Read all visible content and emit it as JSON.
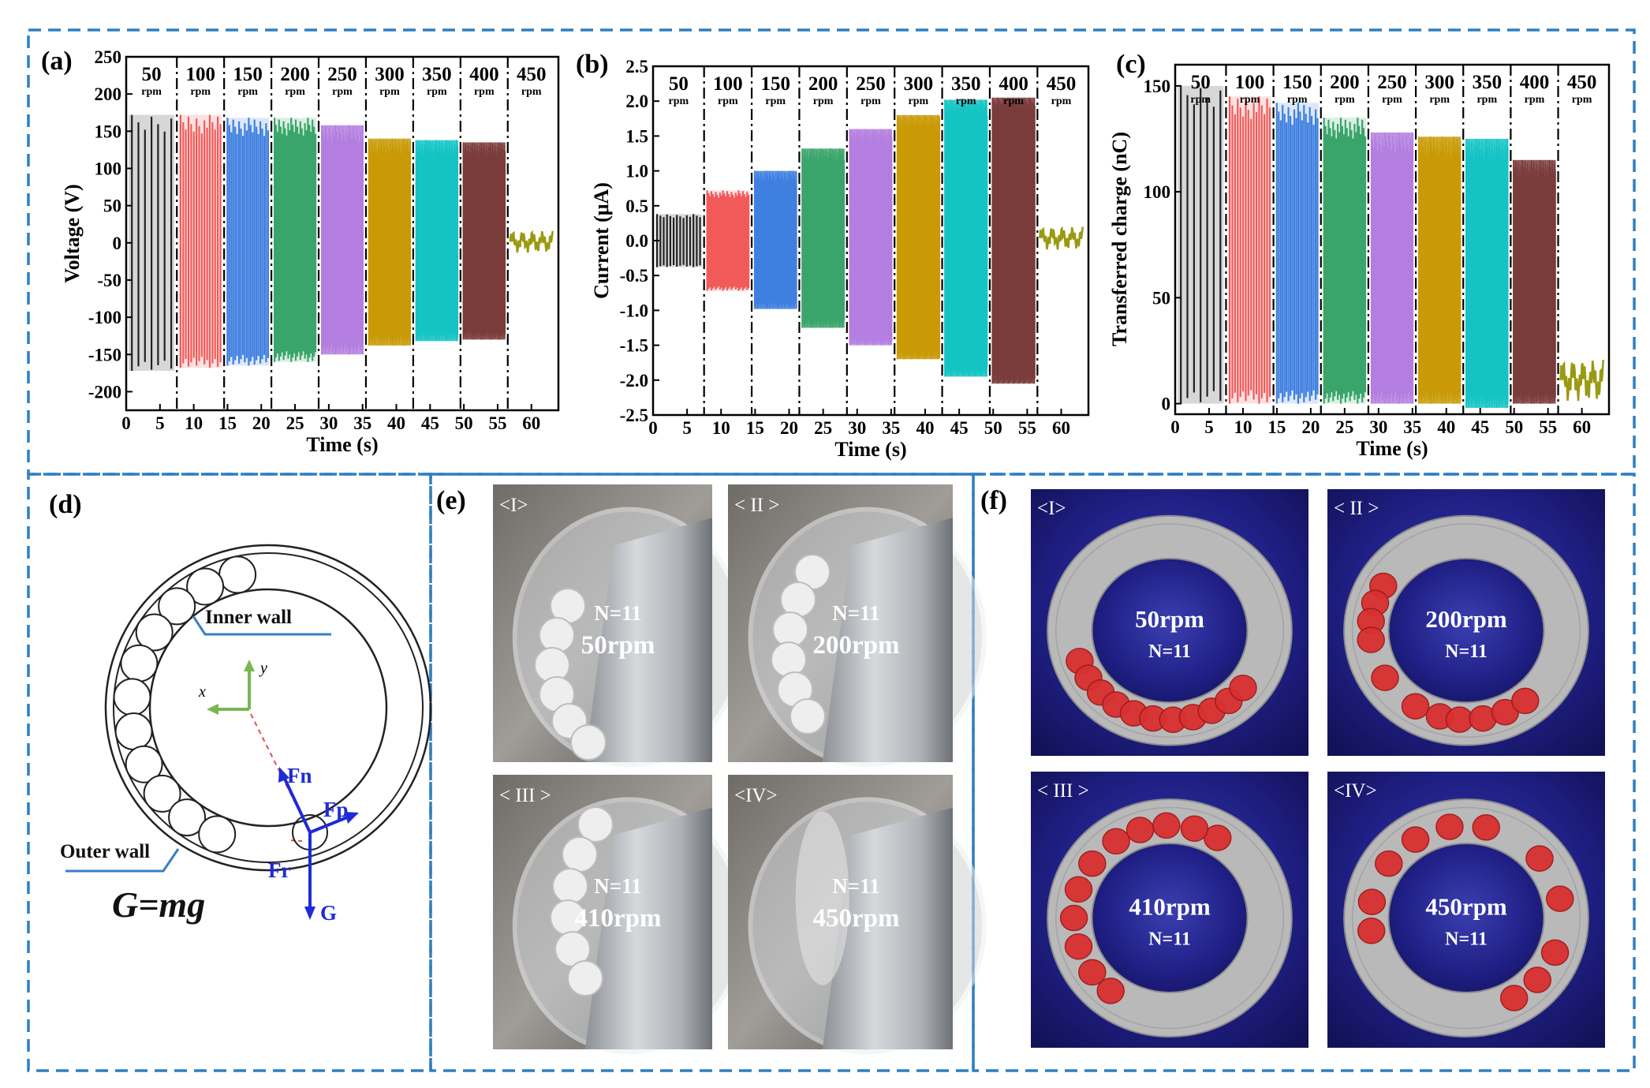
{
  "chart_data": [
    {
      "panel": "(a)",
      "type": "line",
      "xlabel": "Time (s)",
      "ylabel": "Voltage (V)",
      "xlim": [
        0,
        64
      ],
      "ylim": [
        -225,
        250
      ],
      "xticks": [
        0,
        5,
        10,
        15,
        20,
        25,
        30,
        35,
        40,
        45,
        50,
        55,
        60
      ],
      "yticks": [
        -200,
        -150,
        -100,
        -50,
        0,
        50,
        100,
        150,
        200,
        250
      ],
      "segments": [
        {
          "label": "50",
          "unit": "rpm",
          "t": [
            0,
            7.5
          ],
          "max": 172,
          "min": -172,
          "color": "#222222",
          "cycles": 7
        },
        {
          "label": "100",
          "unit": "rpm",
          "t": [
            7.5,
            14.5
          ],
          "max": 172,
          "min": -168,
          "color": "#f25a5a",
          "cycles": 16
        },
        {
          "label": "150",
          "unit": "rpm",
          "t": [
            14.5,
            21.5
          ],
          "max": 168,
          "min": -165,
          "color": "#3f7fe0",
          "cycles": 22
        },
        {
          "label": "200",
          "unit": "rpm",
          "t": [
            21.5,
            28.5
          ],
          "max": 168,
          "min": -160,
          "color": "#3aa56a",
          "cycles": 28
        },
        {
          "label": "250",
          "unit": "rpm",
          "t": [
            28.5,
            35.5
          ],
          "max": 158,
          "min": -150,
          "color": "#b37ee0",
          "cycles": 34
        },
        {
          "label": "300",
          "unit": "rpm",
          "t": [
            35.5,
            42.5
          ],
          "max": 140,
          "min": -138,
          "color": "#c99a06",
          "cycles": 40
        },
        {
          "label": "350",
          "unit": "rpm",
          "t": [
            42.5,
            49.5
          ],
          "max": 138,
          "min": -132,
          "color": "#14c4c4",
          "cycles": 46
        },
        {
          "label": "400",
          "unit": "rpm",
          "t": [
            49.5,
            56.5
          ],
          "max": 135,
          "min": -130,
          "color": "#7a3b3b",
          "cycles": 52
        },
        {
          "label": "450",
          "unit": "rpm",
          "t": [
            56.5,
            63.5
          ],
          "max": 18,
          "min": -15,
          "color": "#9a9a12",
          "cycles": 0
        }
      ]
    },
    {
      "panel": "(b)",
      "type": "line",
      "xlabel": "Time (s)",
      "ylabel": "Current (μA)",
      "xlim": [
        0,
        64
      ],
      "ylim": [
        -2.5,
        2.5
      ],
      "xticks": [
        0,
        5,
        10,
        15,
        20,
        25,
        30,
        35,
        40,
        45,
        50,
        55,
        60
      ],
      "yticks": [
        -2.5,
        -2.0,
        -1.5,
        -1.0,
        -0.5,
        0.0,
        0.5,
        1.0,
        1.5,
        2.0,
        2.5
      ],
      "segments": [
        {
          "label": "50",
          "unit": "rpm",
          "t": [
            0,
            7.5
          ],
          "max": 0.38,
          "min": -0.38,
          "color": "#222222",
          "cycles": 14
        },
        {
          "label": "100",
          "unit": "rpm",
          "t": [
            7.5,
            14.5
          ],
          "max": 0.72,
          "min": -0.72,
          "color": "#f25a5a",
          "cycles": 30
        },
        {
          "label": "150",
          "unit": "rpm",
          "t": [
            14.5,
            21.5
          ],
          "max": 1.0,
          "min": -0.98,
          "color": "#3f7fe0",
          "cycles": 40
        },
        {
          "label": "200",
          "unit": "rpm",
          "t": [
            21.5,
            28.5
          ],
          "max": 1.32,
          "min": -1.25,
          "color": "#3aa56a",
          "cycles": 50
        },
        {
          "label": "250",
          "unit": "rpm",
          "t": [
            28.5,
            35.5
          ],
          "max": 1.6,
          "min": -1.5,
          "color": "#b37ee0",
          "cycles": 60
        },
        {
          "label": "300",
          "unit": "rpm",
          "t": [
            35.5,
            42.5
          ],
          "max": 1.8,
          "min": -1.7,
          "color": "#c99a06",
          "cycles": 70
        },
        {
          "label": "350",
          "unit": "rpm",
          "t": [
            42.5,
            49.5
          ],
          "max": 2.02,
          "min": -1.95,
          "color": "#14c4c4",
          "cycles": 80
        },
        {
          "label": "400",
          "unit": "rpm",
          "t": [
            49.5,
            56.5
          ],
          "max": 2.05,
          "min": -2.05,
          "color": "#7a3b3b",
          "cycles": 90
        },
        {
          "label": "450",
          "unit": "rpm",
          "t": [
            56.5,
            63.5
          ],
          "max": 0.22,
          "min": -0.15,
          "color": "#9a9a12",
          "cycles": 0
        }
      ]
    },
    {
      "panel": "(c)",
      "type": "line",
      "xlabel": "Time (s)",
      "ylabel": "Transferred charge (nC)",
      "xlim": [
        0,
        64
      ],
      "ylim": [
        -5,
        160
      ],
      "xticks": [
        0,
        5,
        10,
        15,
        20,
        25,
        30,
        35,
        40,
        45,
        50,
        55,
        60
      ],
      "yticks": [
        0,
        50,
        100,
        150
      ],
      "segments": [
        {
          "label": "50",
          "unit": "rpm",
          "t": [
            0,
            7.5
          ],
          "max": 150,
          "min": 0,
          "color": "#222222",
          "cycles": 7
        },
        {
          "label": "100",
          "unit": "rpm",
          "t": [
            7.5,
            14.5
          ],
          "max": 145,
          "min": 0,
          "color": "#f25a5a",
          "cycles": 16
        },
        {
          "label": "150",
          "unit": "rpm",
          "t": [
            14.5,
            21.5
          ],
          "max": 142,
          "min": 0,
          "color": "#3f7fe0",
          "cycles": 22
        },
        {
          "label": "200",
          "unit": "rpm",
          "t": [
            21.5,
            28.5
          ],
          "max": 135,
          "min": 0,
          "color": "#3aa56a",
          "cycles": 28
        },
        {
          "label": "250",
          "unit": "rpm",
          "t": [
            28.5,
            35.5
          ],
          "max": 128,
          "min": 0,
          "color": "#b37ee0",
          "cycles": 34
        },
        {
          "label": "300",
          "unit": "rpm",
          "t": [
            35.5,
            42.5
          ],
          "max": 126,
          "min": 0,
          "color": "#c99a06",
          "cycles": 40
        },
        {
          "label": "350",
          "unit": "rpm",
          "t": [
            42.5,
            49.5
          ],
          "max": 125,
          "min": -2,
          "color": "#14c4c4",
          "cycles": 46
        },
        {
          "label": "400",
          "unit": "rpm",
          "t": [
            49.5,
            56.5
          ],
          "max": 115,
          "min": 0,
          "color": "#7a3b3b",
          "cycles": 52
        },
        {
          "label": "450",
          "unit": "rpm",
          "t": [
            56.5,
            63.5
          ],
          "max": 22,
          "min": 0,
          "color": "#9a9a12",
          "cycles": 0
        }
      ]
    }
  ],
  "panel_d": {
    "label": "(d)",
    "inner_wall": "Inner wall",
    "outer_wall": "Outer wall",
    "axis_x": "x",
    "axis_y": "y",
    "force_fn": "Fn",
    "force_fp": "Fp",
    "force_fr": "Fr",
    "force_g": "G",
    "equation": "G=mg"
  },
  "panel_e": {
    "label": "(e)",
    "photos": [
      {
        "tag": "<I>",
        "n": "N=11",
        "speed": "50rpm"
      },
      {
        "tag": "< II >",
        "n": "N=11",
        "speed": "200rpm"
      },
      {
        "tag": "< III >",
        "n": "N=11",
        "speed": "410rpm"
      },
      {
        "tag": "<IV>",
        "n": "N=11",
        "speed": "450rpm"
      }
    ]
  },
  "panel_f": {
    "label": "(f)",
    "sims": [
      {
        "tag": "<I>",
        "speed": "50rpm",
        "n": "N=11"
      },
      {
        "tag": "< II >",
        "speed": "200rpm",
        "n": "N=11"
      },
      {
        "tag": "< III >",
        "speed": "410rpm",
        "n": "N=11"
      },
      {
        "tag": "<IV>",
        "speed": "450rpm",
        "n": "N=11"
      }
    ]
  },
  "colors": {
    "frame": "#2f7fc1",
    "ball_red": "#d83030",
    "sim_bg": "#1e2a8a",
    "ring_gray": "#b9b9b9"
  }
}
